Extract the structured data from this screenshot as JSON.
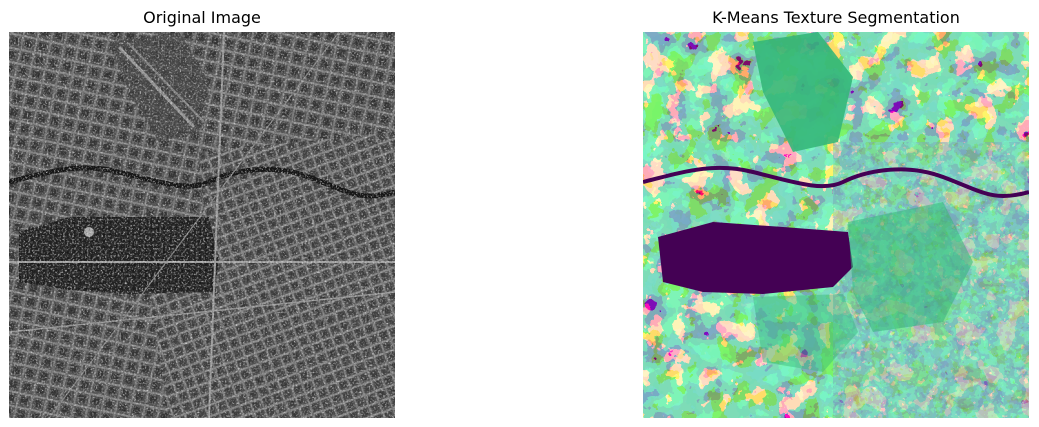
{
  "panels": [
    {
      "title": "Original Image",
      "colormap": "grayscale"
    },
    {
      "title": "K-Means Texture Segmentation",
      "colormap": "viridis",
      "cluster_colors": [
        "#440154",
        "#31688e",
        "#35b779",
        "#fde725"
      ]
    }
  ]
}
